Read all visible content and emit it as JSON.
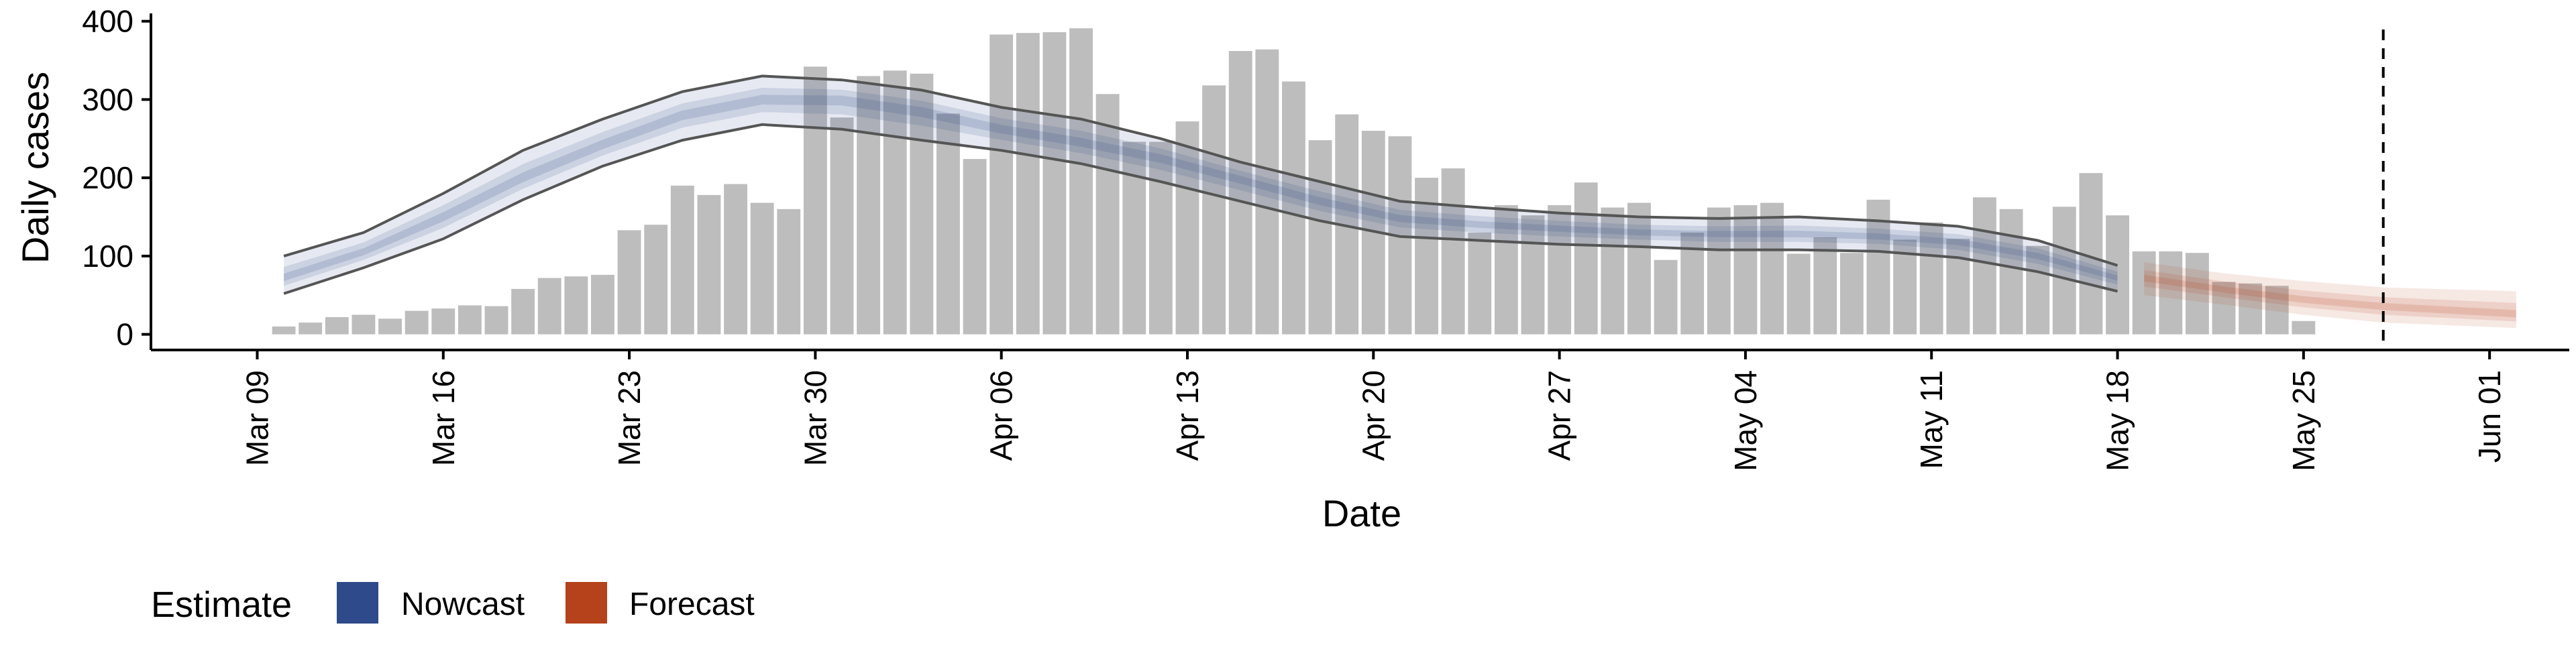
{
  "colors": {
    "bars": "#bdbdbd",
    "nowcast": "#2e4a8a",
    "forecast": "#b5421a",
    "outline": "#555555",
    "axis": "#000000",
    "vline": "#000000"
  },
  "chart_data": {
    "type": "bar",
    "xlabel": "Date",
    "ylabel": "Daily cases",
    "ylim": [
      -20,
      410
    ],
    "yticks": [
      0,
      100,
      200,
      300,
      400
    ],
    "xlim": [
      "2020-03-05",
      "2020-06-04"
    ],
    "xticks": [
      {
        "date": "2020-03-09",
        "label": "Mar 09"
      },
      {
        "date": "2020-03-16",
        "label": "Mar 16"
      },
      {
        "date": "2020-03-23",
        "label": "Mar 23"
      },
      {
        "date": "2020-03-30",
        "label": "Mar 30"
      },
      {
        "date": "2020-04-06",
        "label": "Apr 06"
      },
      {
        "date": "2020-04-13",
        "label": "Apr 13"
      },
      {
        "date": "2020-04-20",
        "label": "Apr 20"
      },
      {
        "date": "2020-04-27",
        "label": "Apr 27"
      },
      {
        "date": "2020-05-04",
        "label": "May 04"
      },
      {
        "date": "2020-05-11",
        "label": "May 11"
      },
      {
        "date": "2020-05-18",
        "label": "May 18"
      },
      {
        "date": "2020-05-25",
        "label": "May 25"
      },
      {
        "date": "2020-06-01",
        "label": "Jun 01"
      }
    ],
    "vline": "2020-05-28",
    "grid": false,
    "legend": {
      "position": "bottom-left",
      "title": "Estimate",
      "entries": [
        "Nowcast",
        "Forecast"
      ]
    },
    "bars": {
      "start": "2020-03-10",
      "values": [
        10,
        15,
        22,
        25,
        20,
        30,
        33,
        37,
        36,
        58,
        72,
        74,
        76,
        133,
        140,
        190,
        178,
        192,
        168,
        160,
        342,
        277,
        330,
        337,
        333,
        282,
        224,
        383,
        385,
        386,
        391,
        307,
        246,
        246,
        272,
        318,
        362,
        364,
        323,
        248,
        281,
        260,
        253,
        200,
        212,
        130,
        165,
        152,
        165,
        194,
        162,
        168,
        95,
        130,
        162,
        165,
        168,
        103,
        124,
        104,
        172,
        121,
        143,
        122,
        175,
        160,
        113,
        163,
        206,
        152,
        106,
        106,
        104,
        67,
        65,
        62,
        17
      ]
    },
    "nowcast": {
      "dates": [
        "2020-03-10",
        "2020-03-13",
        "2020-03-16",
        "2020-03-19",
        "2020-03-22",
        "2020-03-25",
        "2020-03-28",
        "2020-03-31",
        "2020-04-03",
        "2020-04-06",
        "2020-04-09",
        "2020-04-12",
        "2020-04-15",
        "2020-04-18",
        "2020-04-21",
        "2020-04-24",
        "2020-04-27",
        "2020-04-30",
        "2020-05-03",
        "2020-05-06",
        "2020-05-09",
        "2020-05-12",
        "2020-05-15",
        "2020-05-18"
      ],
      "median": [
        72,
        105,
        150,
        200,
        242,
        280,
        300,
        300,
        285,
        262,
        245,
        225,
        198,
        170,
        148,
        140,
        135,
        130,
        128,
        128,
        125,
        118,
        100,
        72
      ],
      "lower90": [
        52,
        85,
        122,
        172,
        215,
        248,
        268,
        262,
        248,
        235,
        218,
        195,
        170,
        145,
        125,
        120,
        115,
        112,
        108,
        108,
        106,
        98,
        80,
        55
      ],
      "upper90": [
        100,
        130,
        180,
        235,
        275,
        310,
        330,
        325,
        312,
        290,
        275,
        250,
        220,
        195,
        170,
        162,
        155,
        150,
        148,
        150,
        145,
        138,
        120,
        88
      ]
    },
    "forecast": {
      "dates": [
        "2020-05-19",
        "2020-05-22",
        "2020-05-25",
        "2020-05-28",
        "2020-06-02"
      ],
      "median": [
        72,
        57,
        44,
        35,
        25
      ],
      "lower90": [
        50,
        38,
        25,
        15,
        8
      ],
      "upper90": [
        92,
        78,
        68,
        60,
        55
      ]
    }
  }
}
